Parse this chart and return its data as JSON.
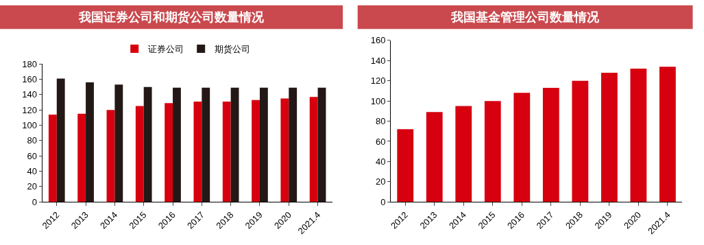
{
  "chart_data": [
    {
      "type": "bar",
      "title": "我国证券公司和期货公司数量情况",
      "categories": [
        "2012",
        "2013",
        "2014",
        "2015",
        "2016",
        "2017",
        "2018",
        "2019",
        "2020",
        "2021.4"
      ],
      "series": [
        {
          "name": "证券公司",
          "color": "#d7000f",
          "values": [
            114,
            115,
            120,
            125,
            129,
            131,
            131,
            133,
            135,
            137
          ]
        },
        {
          "name": "期货公司",
          "color": "#231815",
          "values": [
            161,
            156,
            153,
            150,
            149,
            149,
            149,
            149,
            149,
            149
          ]
        }
      ],
      "ylim": [
        0,
        180
      ],
      "yticks": [
        0,
        20,
        40,
        60,
        80,
        100,
        120,
        140,
        160,
        180
      ],
      "legend": "top"
    },
    {
      "type": "bar",
      "title": "我国基金管理公司数量情况",
      "categories": [
        "2012",
        "2013",
        "2014",
        "2015",
        "2016",
        "2017",
        "2018",
        "2019",
        "2020",
        "2021.4"
      ],
      "series": [
        {
          "color": "#d7000f",
          "values": [
            72,
            89,
            95,
            100,
            108,
            113,
            120,
            128,
            132,
            134
          ]
        }
      ],
      "ylim": [
        0,
        160
      ],
      "yticks": [
        0,
        20,
        40,
        60,
        80,
        100,
        120,
        140,
        160
      ]
    }
  ]
}
